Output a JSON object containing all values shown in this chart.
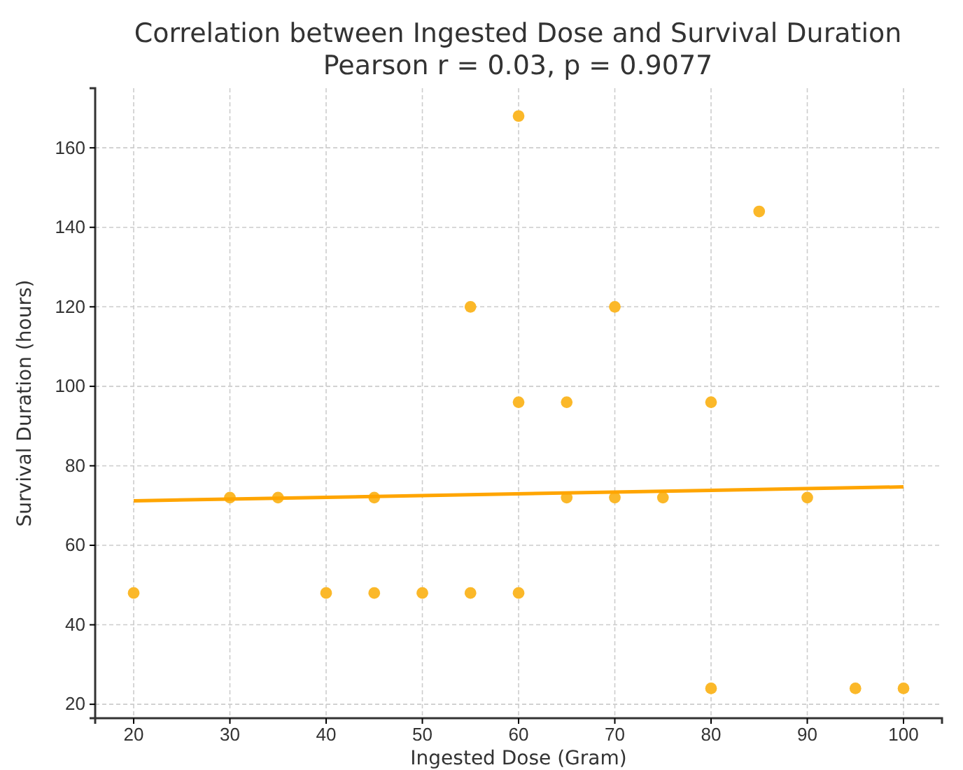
{
  "chart_data": {
    "type": "scatter",
    "title": "Correlation between Ingested Dose and Survival Duration",
    "subtitle": "Pearson r = 0.03, p = 0.9077",
    "xlabel": "Ingested Dose (Gram)",
    "ylabel": "Survival Duration (hours)",
    "xlim": [
      16,
      104
    ],
    "xticks": [
      20,
      30,
      40,
      50,
      60,
      70,
      80,
      90,
      100
    ],
    "ylim": [
      16.5,
      175
    ],
    "yticks": [
      20,
      40,
      60,
      80,
      100,
      120,
      140,
      160
    ],
    "grid": true,
    "series": [
      {
        "marker": "circle",
        "color": "#fbb829",
        "x": [
          20,
          30,
          35,
          40,
          45,
          45,
          50,
          55,
          55,
          60,
          60,
          60,
          65,
          65,
          70,
          70,
          75,
          80,
          80,
          85,
          90,
          95,
          100
        ],
        "values": [
          48,
          72,
          72,
          48,
          48,
          72,
          48,
          48,
          120,
          168,
          96,
          48,
          96,
          72,
          120,
          72,
          72,
          96,
          24,
          144,
          72,
          24,
          24
        ]
      },
      {
        "type": "line",
        "color": "#ffa500",
        "x": [
          20,
          100
        ],
        "values": [
          71.2,
          74.7
        ]
      }
    ]
  }
}
